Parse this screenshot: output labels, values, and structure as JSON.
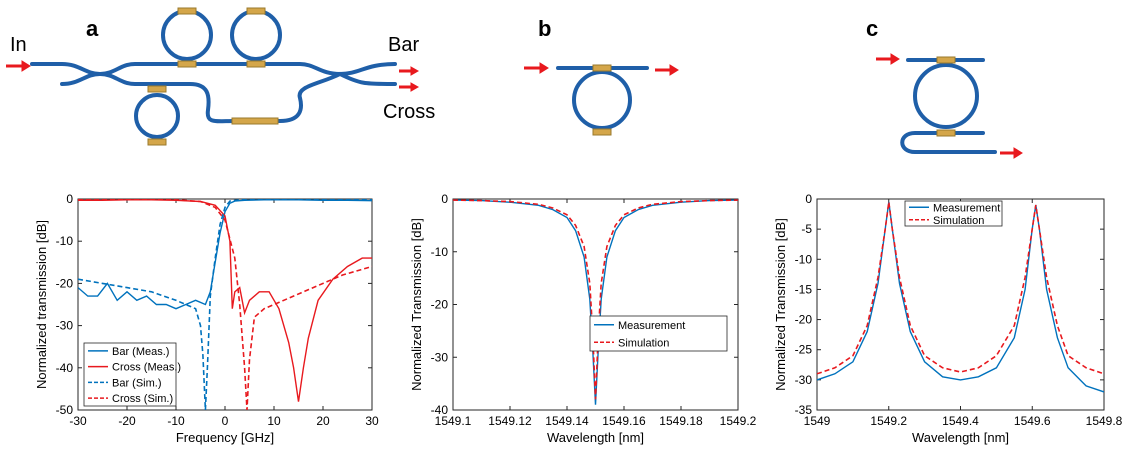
{
  "labels": {
    "panel_a": "a",
    "panel_b": "b",
    "panel_c": "c",
    "in": "In",
    "bar": "Bar",
    "cross": "Cross"
  },
  "colors": {
    "waveguide": "#1f5fa8",
    "heater": "#d4a64a",
    "arrow": "#e8191e",
    "blue": "#0072bd",
    "red": "#e8191e"
  },
  "chart_data": [
    {
      "type": "line",
      "xlabel": "Frequency [GHz]",
      "ylabel": "Normalized transmission [dB]",
      "xlim": [
        -30,
        30
      ],
      "ylim": [
        -50,
        0
      ],
      "xticks": [
        "-30",
        "-20",
        "-10",
        "0",
        "10",
        "20",
        "30"
      ],
      "yticks": [
        "0",
        "-10",
        "-20",
        "-30",
        "-40",
        "-50"
      ],
      "legend_position": "bottom-left",
      "series": [
        {
          "name": "Bar (Meas.)",
          "color": "#0072bd",
          "dash": "solid",
          "x": [
            -30,
            -28,
            -26,
            -24,
            -22,
            -20,
            -18,
            -16,
            -14,
            -12,
            -10,
            -8,
            -6,
            -4,
            -3,
            -2,
            -1,
            0,
            1,
            2,
            4,
            8,
            15,
            20,
            25,
            30
          ],
          "y": [
            -21,
            -23,
            -23,
            -20,
            -24,
            -22,
            -24,
            -23,
            -25,
            -25,
            -26,
            -25,
            -24,
            -25,
            -22,
            -15,
            -8,
            -3,
            -1,
            -0.5,
            -0.3,
            -0.2,
            -0.2,
            -0.3,
            -0.3,
            -0.4
          ]
        },
        {
          "name": "Cross (Meas.)",
          "color": "#e8191e",
          "dash": "solid",
          "x": [
            -30,
            -25,
            -20,
            -15,
            -10,
            -5,
            -2,
            0,
            1,
            1.5,
            2,
            3,
            4,
            5,
            7,
            9,
            11,
            13,
            14,
            15,
            16,
            17,
            19,
            22,
            25,
            28,
            30
          ],
          "y": [
            -0.3,
            -0.3,
            -0.2,
            -0.2,
            -0.3,
            -0.6,
            -1.5,
            -4,
            -10,
            -26,
            -22,
            -21,
            -27,
            -24,
            -22,
            -22,
            -26,
            -34,
            -40,
            -48,
            -40,
            -33,
            -24,
            -19,
            -16,
            -14,
            -14
          ]
        },
        {
          "name": "Bar (Sim.)",
          "color": "#0072bd",
          "dash": "dashed",
          "x": [
            -30,
            -25,
            -20,
            -15,
            -10,
            -8,
            -6,
            -5,
            -4.5,
            -4,
            -3.6,
            -3,
            -2,
            -1,
            0,
            1,
            3,
            10,
            20,
            30
          ],
          "y": [
            -19,
            -20,
            -21,
            -22,
            -24,
            -25,
            -26,
            -30,
            -37,
            -50,
            -40,
            -23,
            -14,
            -6,
            -2,
            -0.5,
            -0.2,
            -0.1,
            -0.1,
            -0.1
          ]
        },
        {
          "name": "Cross (Sim.)",
          "color": "#e8191e",
          "dash": "dashed",
          "x": [
            -30,
            -20,
            -10,
            -5,
            -2,
            0,
            2,
            3,
            4,
            4.5,
            5,
            6,
            8,
            12,
            18,
            24,
            30
          ],
          "y": [
            -0.1,
            -0.1,
            -0.2,
            -0.6,
            -2,
            -5,
            -14,
            -25,
            -40,
            -50,
            -38,
            -28,
            -26,
            -24,
            -21,
            -18,
            -16
          ]
        }
      ]
    },
    {
      "type": "line",
      "xlabel": "Wavelength [nm]",
      "ylabel": "Normalized Transmission [dB]",
      "xlim": [
        1549.1,
        1549.2
      ],
      "ylim": [
        -40,
        0
      ],
      "xticks": [
        "1549.1",
        "1549.12",
        "1549.14",
        "1549.16",
        "1549.18",
        "1549.2"
      ],
      "yticks": [
        "0",
        "-10",
        "-20",
        "-30",
        "-40"
      ],
      "legend_position": "lower-right",
      "series": [
        {
          "name": "Measurement",
          "color": "#0072bd",
          "dash": "solid",
          "x": [
            1549.1,
            1549.11,
            1549.12,
            1549.13,
            1549.135,
            1549.14,
            1549.143,
            1549.146,
            1549.148,
            1549.149,
            1549.15,
            1549.151,
            1549.152,
            1549.154,
            1549.157,
            1549.16,
            1549.165,
            1549.17,
            1549.18,
            1549.19,
            1549.2
          ],
          "y": [
            -0.2,
            -0.3,
            -0.6,
            -1.2,
            -2,
            -3.5,
            -6,
            -11,
            -19,
            -28,
            -39,
            -28,
            -19,
            -11,
            -6,
            -3.5,
            -2,
            -1.2,
            -0.6,
            -0.3,
            -0.2
          ]
        },
        {
          "name": "Simulation",
          "color": "#e8191e",
          "dash": "dashed",
          "x": [
            1549.1,
            1549.11,
            1549.12,
            1549.13,
            1549.135,
            1549.14,
            1549.143,
            1549.146,
            1549.148,
            1549.149,
            1549.15,
            1549.151,
            1549.152,
            1549.154,
            1549.157,
            1549.16,
            1549.165,
            1549.17,
            1549.18,
            1549.19,
            1549.2
          ],
          "y": [
            -0.2,
            -0.3,
            -0.5,
            -1,
            -1.7,
            -3,
            -5,
            -9,
            -16,
            -25,
            -38,
            -25,
            -16,
            -9,
            -5,
            -3,
            -1.7,
            -1,
            -0.5,
            -0.3,
            -0.2
          ]
        }
      ]
    },
    {
      "type": "line",
      "xlabel": "Wavelength [nm]",
      "ylabel": "Normalized Transmission [dB]",
      "xlim": [
        1549,
        1549.8
      ],
      "ylim": [
        -35,
        0
      ],
      "xticks": [
        "1549",
        "1549.2",
        "1549.4",
        "1549.6",
        "1549.8"
      ],
      "yticks": [
        "0",
        "-5",
        "-10",
        "-15",
        "-20",
        "-25",
        "-30",
        "-35"
      ],
      "legend_position": "top-center",
      "series": [
        {
          "name": "Measurement",
          "color": "#0072bd",
          "dash": "solid",
          "x": [
            1549,
            1549.05,
            1549.1,
            1549.14,
            1549.17,
            1549.19,
            1549.2,
            1549.21,
            1549.23,
            1549.26,
            1549.3,
            1549.35,
            1549.4,
            1549.45,
            1549.5,
            1549.55,
            1549.58,
            1549.6,
            1549.61,
            1549.62,
            1549.64,
            1549.67,
            1549.7,
            1549.75,
            1549.8
          ],
          "y": [
            -30,
            -29,
            -27,
            -22,
            -14,
            -5,
            -0.5,
            -5,
            -14,
            -22,
            -27,
            -29.5,
            -30,
            -29.5,
            -28,
            -23,
            -15,
            -5,
            -1,
            -5,
            -15,
            -23,
            -28,
            -31,
            -32
          ]
        },
        {
          "name": "Simulation",
          "color": "#e8191e",
          "dash": "dashed",
          "x": [
            1549,
            1549.05,
            1549.1,
            1549.14,
            1549.17,
            1549.19,
            1549.2,
            1549.21,
            1549.23,
            1549.26,
            1549.3,
            1549.35,
            1549.4,
            1549.45,
            1549.5,
            1549.55,
            1549.58,
            1549.6,
            1549.61,
            1549.62,
            1549.64,
            1549.67,
            1549.7,
            1549.75,
            1549.8
          ],
          "y": [
            -29,
            -28,
            -26,
            -21,
            -13,
            -5,
            -0.5,
            -5,
            -13,
            -21,
            -26,
            -28,
            -28.7,
            -28,
            -26,
            -21,
            -13,
            -5,
            -1,
            -5,
            -13,
            -21,
            -26,
            -28,
            -29
          ]
        }
      ]
    }
  ]
}
